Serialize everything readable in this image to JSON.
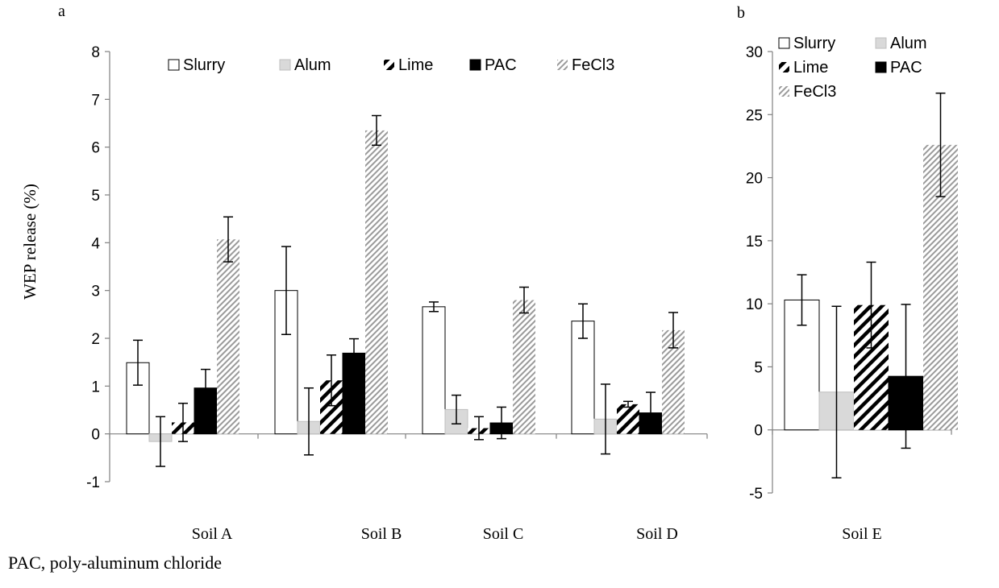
{
  "caption": "PAC, poly-aluminum chloride",
  "chart_data": [
    {
      "panel_label": "a",
      "type": "bar",
      "ylabel": "WEP release  (%)",
      "ylim": [
        -1,
        8
      ],
      "yticks": [
        -1,
        0,
        1,
        2,
        3,
        4,
        5,
        6,
        7,
        8
      ],
      "grid": false,
      "legend_position": "top",
      "categories": [
        "Soil A",
        "Soil B",
        "Soil C",
        "Soil D"
      ],
      "series": [
        {
          "name": "Slurry",
          "style": "white",
          "values": [
            1.49,
            3.0,
            2.66,
            2.36
          ],
          "errors": [
            0.47,
            0.92,
            0.1,
            0.36
          ]
        },
        {
          "name": "Alum",
          "style": "gray",
          "values": [
            -0.16,
            0.26,
            0.51,
            0.31
          ],
          "errors": [
            0.52,
            0.7,
            0.3,
            0.73
          ]
        },
        {
          "name": "Lime",
          "style": "bold-diagonal",
          "values": [
            0.24,
            1.12,
            0.12,
            0.62
          ],
          "errors": [
            0.4,
            0.53,
            0.24,
            0.06
          ]
        },
        {
          "name": "PAC",
          "style": "black",
          "values": [
            0.96,
            1.69,
            0.23,
            0.44
          ],
          "errors": [
            0.39,
            0.3,
            0.33,
            0.43
          ]
        },
        {
          "name": "FeCl3",
          "style": "fine-diagonal",
          "values": [
            4.07,
            6.35,
            2.8,
            2.17
          ],
          "errors": [
            0.47,
            0.31,
            0.27,
            0.37
          ]
        }
      ]
    },
    {
      "panel_label": "b",
      "type": "bar",
      "ylabel": "",
      "ylim": [
        -5,
        30
      ],
      "yticks": [
        -5,
        0,
        5,
        10,
        15,
        20,
        25,
        30
      ],
      "grid": false,
      "legend_position": "top-left",
      "categories": [
        "Soil E"
      ],
      "series": [
        {
          "name": "Slurry",
          "style": "white",
          "values": [
            10.3
          ],
          "errors": [
            2.0
          ]
        },
        {
          "name": "Alum",
          "style": "gray",
          "values": [
            3.0
          ],
          "errors": [
            6.8
          ]
        },
        {
          "name": "Lime",
          "style": "bold-diagonal",
          "values": [
            9.9
          ],
          "errors": [
            3.4
          ]
        },
        {
          "name": "PAC",
          "style": "black",
          "values": [
            4.25
          ],
          "errors": [
            5.7
          ]
        },
        {
          "name": "FeCl3",
          "style": "fine-diagonal",
          "values": [
            22.6
          ],
          "errors": [
            4.1
          ]
        }
      ]
    }
  ]
}
